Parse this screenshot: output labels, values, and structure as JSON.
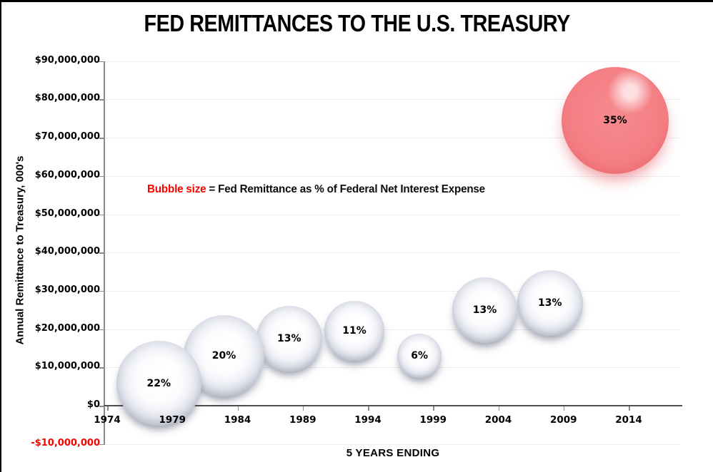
{
  "title": "FED REMITTANCES TO THE U.S. TREASURY",
  "legend": {
    "bubble_size_label": "Bubble size",
    "description": " = Fed Remittance as % of Federal Net Interest Expense"
  },
  "colors": {
    "legend_accent": "#ff0000",
    "negative_tick_label": "#ff0000",
    "red_bubble_base": "#f4797e",
    "silver_bubble_rim": "#5d6273",
    "gridline": "#eeeef2",
    "axis": "#8a8a8a"
  },
  "chart_data": {
    "type": "scatter",
    "subtype": "bubble",
    "title": "FED REMITTANCES TO THE U.S. TREASURY",
    "xlabel": "5 YEARS ENDING",
    "ylabel": "Annual Remittance to Treasury, 000's",
    "grid": "horizontal",
    "legend_position": "inside-top-left",
    "xlim": [
      1974,
      2018
    ],
    "ylim": [
      -10000000,
      90000000
    ],
    "x_ticks": [
      {
        "label": "1974",
        "value": 1974
      },
      {
        "label": "1979",
        "value": 1979
      },
      {
        "label": "1984",
        "value": 1984
      },
      {
        "label": "1989",
        "value": 1989
      },
      {
        "label": "1994",
        "value": 1994
      },
      {
        "label": "1999",
        "value": 1999
      },
      {
        "label": "2004",
        "value": 2004
      },
      {
        "label": "2009",
        "value": 2009
      },
      {
        "label": "2014",
        "value": 2014
      }
    ],
    "y_ticks": [
      {
        "label": "$90,000,000",
        "value": 90000000,
        "negative": false
      },
      {
        "label": "$80,000,000",
        "value": 80000000,
        "negative": false
      },
      {
        "label": "$70,000,000",
        "value": 70000000,
        "negative": false
      },
      {
        "label": "$60,000,000",
        "value": 60000000,
        "negative": false
      },
      {
        "label": "$50,000,000",
        "value": 50000000,
        "negative": false
      },
      {
        "label": "$40,000,000",
        "value": 40000000,
        "negative": false
      },
      {
        "label": "$30,000,000",
        "value": 30000000,
        "negative": false
      },
      {
        "label": "$20,000,000",
        "value": 20000000,
        "negative": false
      },
      {
        "label": "$10,000,000",
        "value": 10000000,
        "negative": false
      },
      {
        "label": "$0",
        "value": 0,
        "negative": false
      },
      {
        "label": "-$10,000,000",
        "value": -10000000,
        "negative": true
      }
    ],
    "points": [
      {
        "year": 1979,
        "value_000s": 5800000,
        "pct_of_net_interest": 22,
        "label": "22%",
        "color": "silver"
      },
      {
        "year": 1984,
        "value_000s": 13000000,
        "pct_of_net_interest": 20,
        "label": "20%",
        "color": "silver"
      },
      {
        "year": 1989,
        "value_000s": 17500000,
        "pct_of_net_interest": 13,
        "label": "13%",
        "color": "silver"
      },
      {
        "year": 1994,
        "value_000s": 19600000,
        "pct_of_net_interest": 11,
        "label": "11%",
        "color": "silver"
      },
      {
        "year": 1999,
        "value_000s": 13100000,
        "pct_of_net_interest": 6,
        "label": "6%",
        "color": "silver"
      },
      {
        "year": 2004,
        "value_000s": 25000000,
        "pct_of_net_interest": 13,
        "label": "13%",
        "color": "silver"
      },
      {
        "year": 2009,
        "value_000s": 26800000,
        "pct_of_net_interest": 13,
        "label": "13%",
        "color": "silver"
      },
      {
        "year": 2014,
        "value_000s": 74500000,
        "pct_of_net_interest": 35,
        "label": "35%",
        "color": "red"
      }
    ]
  }
}
